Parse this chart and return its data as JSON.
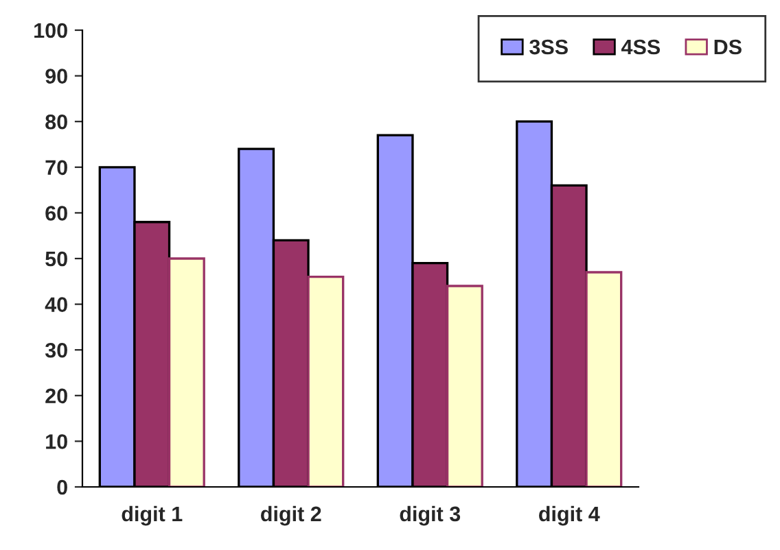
{
  "chart_data": {
    "type": "bar",
    "categories": [
      "digit 1",
      "digit 2",
      "digit 3",
      "digit 4"
    ],
    "series": [
      {
        "name": "3SS",
        "color": "#9999ff",
        "values": [
          70,
          74,
          77,
          80
        ]
      },
      {
        "name": "4SS",
        "color": "#993366",
        "values": [
          58,
          54,
          49,
          66
        ]
      },
      {
        "name": "DS",
        "color": "#ffffcc",
        "values": [
          50,
          46,
          44,
          47
        ]
      }
    ],
    "ylim": [
      0,
      100
    ],
    "yticks": [
      0,
      10,
      20,
      30,
      40,
      50,
      60,
      70,
      80,
      90,
      100
    ],
    "grid": false,
    "legend": "top right"
  }
}
